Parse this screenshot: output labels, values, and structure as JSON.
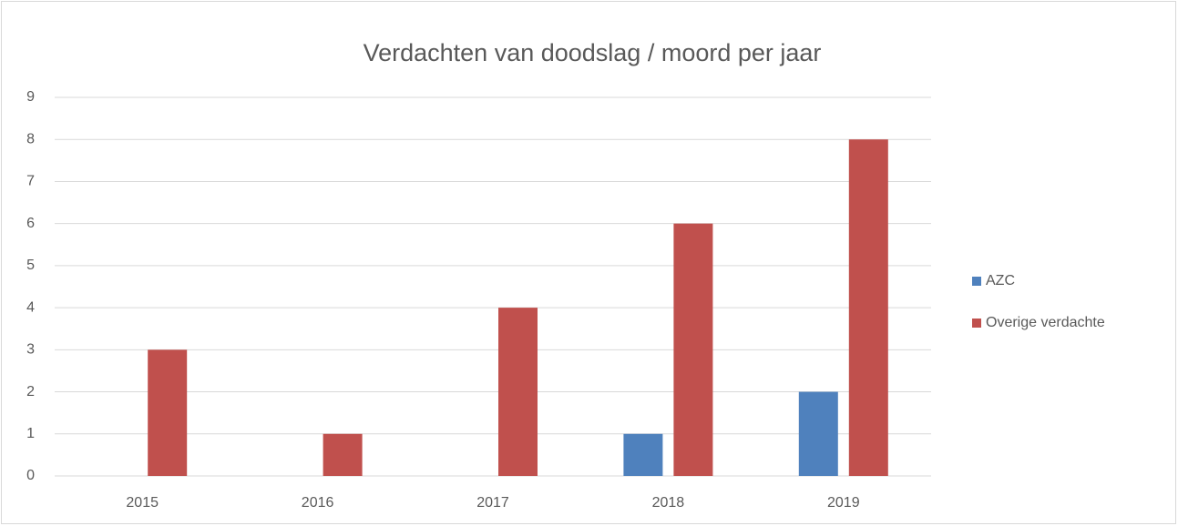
{
  "chart_data": {
    "type": "bar",
    "title": "Verdachten van doodslag / moord  per jaar",
    "categories": [
      "2015",
      "2016",
      "2017",
      "2018",
      "2019"
    ],
    "series": [
      {
        "name": "AZC",
        "color": "#4f81bd",
        "values": [
          0,
          0,
          0,
          1,
          2
        ]
      },
      {
        "name": "Overige verdachte",
        "color": "#c0504d",
        "values": [
          3,
          1,
          4,
          6,
          8
        ]
      }
    ],
    "ylim": [
      0,
      9
    ],
    "yticks": [
      0,
      1,
      2,
      3,
      4,
      5,
      6,
      7,
      8,
      9
    ],
    "grid": true,
    "legend": "right"
  }
}
